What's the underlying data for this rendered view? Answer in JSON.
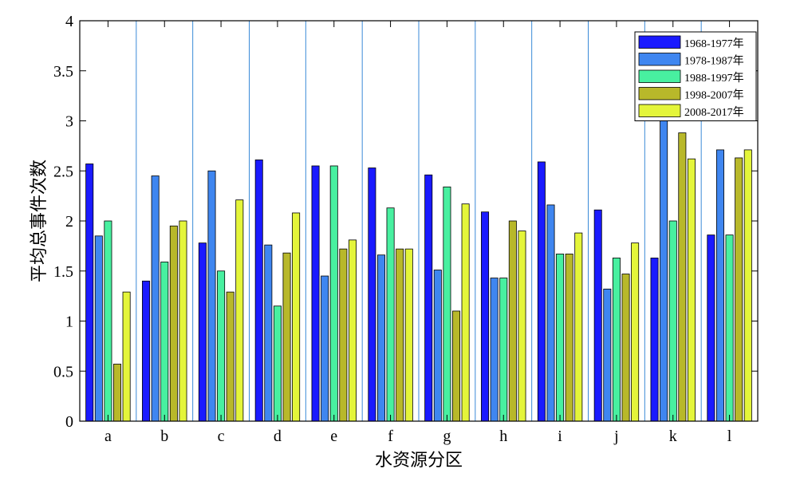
{
  "chart_data": {
    "type": "bar",
    "xlabel": "水资源分区",
    "ylabel": "平均总事件次数",
    "ylim": [
      0,
      4
    ],
    "yticks": [
      "0",
      "0.5",
      "1",
      "1.5",
      "2",
      "2.5",
      "3",
      "3.5",
      "4"
    ],
    "categories": [
      "a",
      "b",
      "c",
      "d",
      "e",
      "f",
      "g",
      "h",
      "i",
      "j",
      "k",
      "l"
    ],
    "legend_position": "top-right",
    "series": [
      {
        "name": "1968-1977年",
        "color": "#1a1aff",
        "values": [
          2.57,
          1.4,
          1.78,
          2.61,
          2.55,
          2.53,
          2.46,
          2.09,
          2.59,
          2.11,
          1.63,
          1.86
        ]
      },
      {
        "name": "1978-1987年",
        "color": "#3f86f0",
        "values": [
          1.85,
          2.45,
          2.5,
          1.76,
          1.45,
          1.66,
          1.51,
          1.43,
          2.16,
          1.32,
          3.0,
          2.71
        ]
      },
      {
        "name": "1988-1997年",
        "color": "#48f0a0",
        "values": [
          2.0,
          1.59,
          1.5,
          1.15,
          2.55,
          2.13,
          2.34,
          1.43,
          1.67,
          1.63,
          2.0,
          1.86
        ]
      },
      {
        "name": "1998-2007年",
        "color": "#b8b82a",
        "values": [
          0.57,
          1.95,
          1.29,
          1.68,
          1.72,
          1.72,
          1.1,
          2.0,
          1.67,
          1.47,
          2.88,
          2.63
        ]
      },
      {
        "name": "2008-2017年",
        "color": "#e4f53a",
        "values": [
          1.29,
          2.0,
          2.21,
          2.08,
          1.81,
          1.72,
          2.17,
          1.9,
          1.88,
          1.78,
          2.62,
          2.71
        ]
      }
    ]
  }
}
